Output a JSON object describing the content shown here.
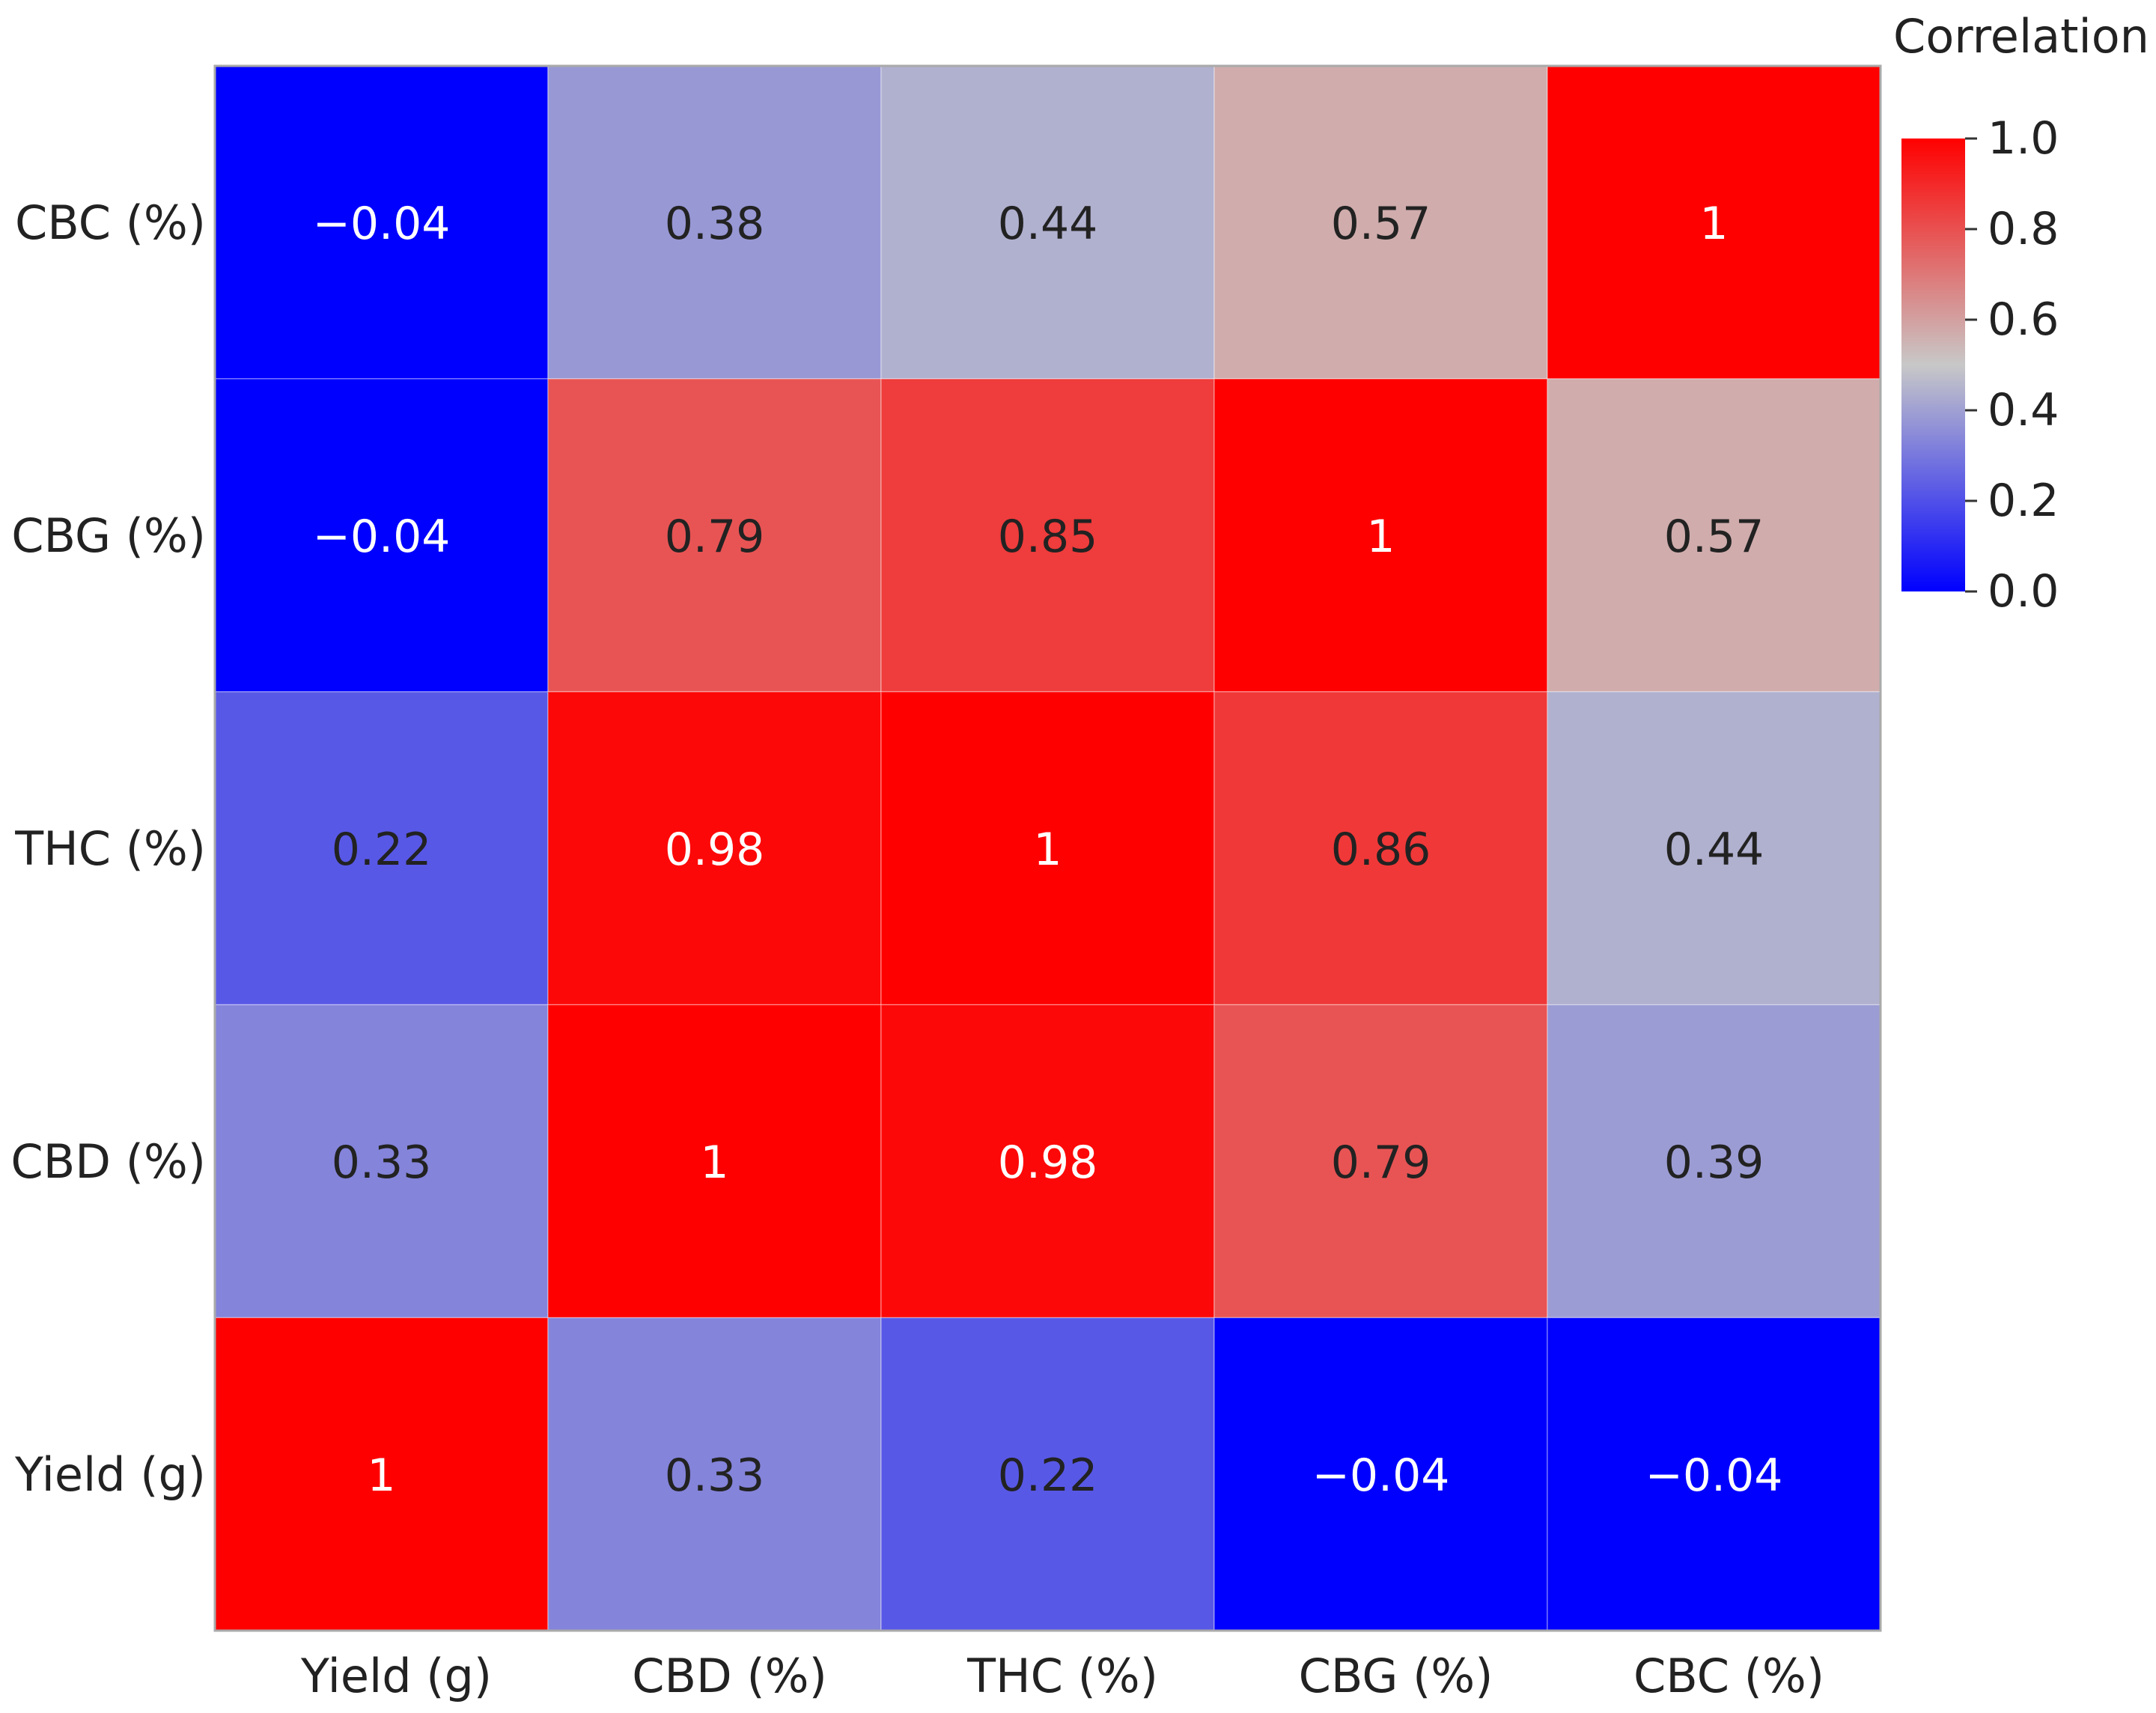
{
  "chart_data": {
    "type": "heatmap",
    "title": "",
    "xlabel": "",
    "ylabel": "",
    "x_categories": [
      "Yield (g)",
      "CBD (%)",
      "THC (%)",
      "CBG (%)",
      "CBC (%)"
    ],
    "y_categories_top_to_bottom": [
      "CBC (%)",
      "CBG (%)",
      "THC (%)",
      "CBD (%)",
      "Yield (g)"
    ],
    "values": [
      [
        -0.04,
        0.38,
        0.44,
        0.57,
        1
      ],
      [
        -0.04,
        0.79,
        0.85,
        1,
        0.57
      ],
      [
        0.22,
        0.98,
        1,
        0.86,
        0.44
      ],
      [
        0.33,
        1,
        0.98,
        0.79,
        0.39
      ],
      [
        1,
        0.33,
        0.22,
        -0.04,
        -0.04
      ]
    ],
    "cell_labels": [
      [
        "−0.04",
        "0.38",
        "0.44",
        "0.57",
        "1"
      ],
      [
        "−0.04",
        "0.79",
        "0.85",
        "1",
        "0.57"
      ],
      [
        "0.22",
        "0.98",
        "1",
        "0.86",
        "0.44"
      ],
      [
        "0.33",
        "1",
        "0.98",
        "0.79",
        "0.39"
      ],
      [
        "1",
        "0.33",
        "0.22",
        "−0.04",
        "−0.04"
      ]
    ],
    "colorbar": {
      "title": "Correlation",
      "range": [
        0.0,
        1.0
      ],
      "ticks": [
        0.0,
        0.2,
        0.4,
        0.6,
        0.8,
        1.0
      ],
      "tick_labels": [
        "0.0",
        "0.2",
        "0.4",
        "0.6",
        "0.8",
        "1.0"
      ],
      "color_stops": [
        {
          "value": 0.0,
          "color": "#0000ff"
        },
        {
          "value": 0.5,
          "color": "#c8c8c8"
        },
        {
          "value": 1.0,
          "color": "#ff0000"
        }
      ]
    }
  }
}
